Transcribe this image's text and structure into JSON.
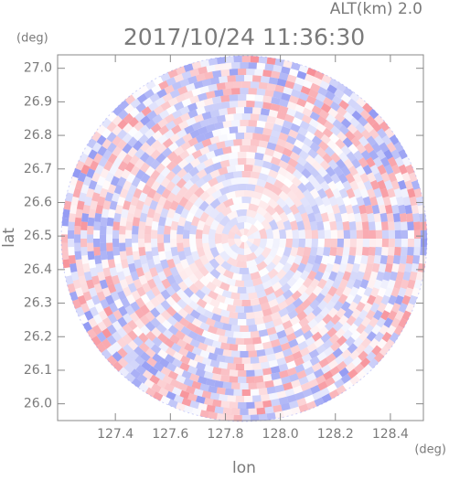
{
  "chart_data": {
    "type": "ppi",
    "title": "2017/10/24 11:36:30",
    "subtitle": "ALT(km) 2.0",
    "xlabel": "lon",
    "ylabel": "lat",
    "xunit": "(deg)",
    "yunit": "(deg)",
    "xlim": [
      127.19,
      128.52
    ],
    "ylim": [
      25.95,
      27.04
    ],
    "xticks": [
      127.4,
      127.6,
      127.8,
      {
        "value": 128.0,
        "label": "128.0"
      },
      128.2,
      128.4
    ],
    "yticks": [
      {
        "value": 26.0,
        "label": "26.0"
      },
      26.1,
      26.2,
      26.3,
      26.4,
      26.5,
      26.6,
      26.7,
      26.8,
      26.9,
      {
        "value": 27.0,
        "label": "27.0"
      }
    ]
  }
}
